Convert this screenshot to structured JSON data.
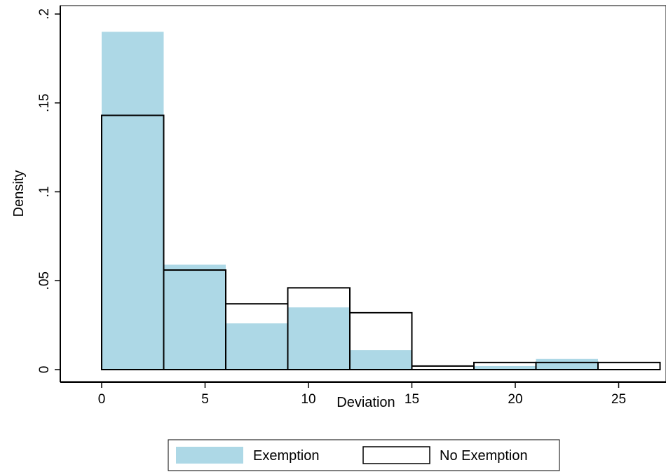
{
  "chart_data": {
    "type": "bar",
    "subtype": "overlaid-histogram",
    "title": "",
    "xlabel": "Deviation",
    "ylabel": "Density",
    "xlim": [
      -2,
      27
    ],
    "ylim": [
      -0.006,
      0.2
    ],
    "x_ticks": [
      {
        "value": 0,
        "label": "0"
      },
      {
        "value": 5,
        "label": "5"
      },
      {
        "value": 10,
        "label": "10"
      },
      {
        "value": 15,
        "label": "15"
      },
      {
        "value": 20,
        "label": "20"
      },
      {
        "value": 25,
        "label": "25"
      }
    ],
    "y_ticks": [
      {
        "value": 0,
        "label": "0"
      },
      {
        "value": 0.05,
        "label": ".05"
      },
      {
        "value": 0.1,
        "label": ".1"
      },
      {
        "value": 0.15,
        "label": ".15"
      },
      {
        "value": 0.2,
        "label": ".2"
      }
    ],
    "bin_edges": [
      0,
      3,
      6,
      9,
      12,
      15,
      18,
      21,
      24,
      27
    ],
    "series": [
      {
        "name": "Exemption",
        "style": "filled",
        "color": "#ADD8E6",
        "values": [
          0.19,
          0.059,
          0.026,
          0.035,
          0.011,
          0.0,
          0.002,
          0.006,
          0.0
        ]
      },
      {
        "name": "No Exemption",
        "style": "outline",
        "color": "#000000",
        "values": [
          0.143,
          0.056,
          0.037,
          0.046,
          0.032,
          0.002,
          0.004,
          0.004,
          0.004
        ]
      }
    ],
    "grid": false,
    "legend_position": "bottom-center"
  }
}
